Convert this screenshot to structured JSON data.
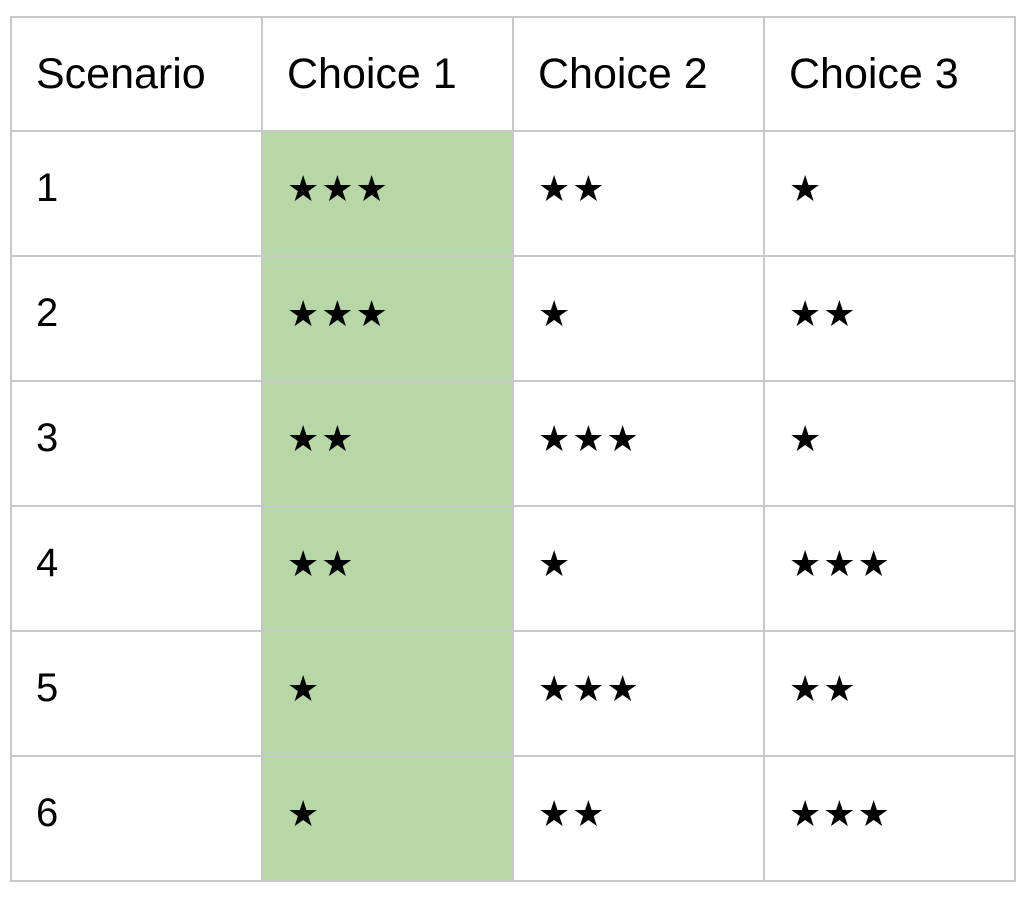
{
  "colors": {
    "highlight": "#b7d7a8",
    "border": "#c8c8c8"
  },
  "table": {
    "headers": [
      "Scenario",
      "Choice 1",
      "Choice 2",
      "Choice 3"
    ],
    "highlighted_column": 1,
    "rows": [
      {
        "scenario": "1",
        "cells": [
          "★★★",
          "★★",
          "★"
        ]
      },
      {
        "scenario": "2",
        "cells": [
          "★★★",
          "★",
          "★★"
        ]
      },
      {
        "scenario": "3",
        "cells": [
          "★★",
          "★★★",
          "★"
        ]
      },
      {
        "scenario": "4",
        "cells": [
          "★★",
          "★",
          "★★★"
        ]
      },
      {
        "scenario": "5",
        "cells": [
          "★",
          "★★★",
          "★★"
        ]
      },
      {
        "scenario": "6",
        "cells": [
          "★",
          "★★",
          "★★★"
        ]
      }
    ]
  }
}
